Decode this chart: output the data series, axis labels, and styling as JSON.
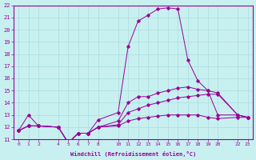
{
  "xlabel": "Windchill (Refroidissement éolien,°C)",
  "bg_color": "#c8f0f0",
  "line_color": "#990099",
  "grid_color": "#aadddd",
  "x_positions": [
    0,
    1,
    2,
    4,
    5,
    6,
    7,
    8,
    10,
    11,
    12,
    13,
    14,
    15,
    16,
    17,
    18,
    19,
    20,
    22,
    23
  ],
  "xtick_labels": [
    "0",
    "1",
    "2",
    "4",
    "5",
    "6",
    "7",
    "8",
    "10",
    "11",
    "12",
    "13",
    "14",
    "15",
    "16",
    "17",
    "18",
    "19",
    "20",
    "22",
    "23"
  ],
  "series1": [
    11.7,
    13.0,
    12.1,
    12.0,
    10.7,
    11.5,
    11.5,
    12.6,
    13.2,
    18.6,
    20.7,
    21.2,
    21.7,
    21.8,
    21.7,
    17.5,
    15.8,
    15.0,
    13.0,
    13.0,
    12.8
  ],
  "series2": [
    11.7,
    12.1,
    12.1,
    12.0,
    10.7,
    11.5,
    11.5,
    12.0,
    12.5,
    14.0,
    14.5,
    14.5,
    14.8,
    15.0,
    15.2,
    15.3,
    15.1,
    15.0,
    14.8,
    13.0,
    12.8
  ],
  "series3": [
    11.7,
    12.1,
    12.1,
    12.0,
    10.7,
    11.5,
    11.5,
    12.0,
    12.2,
    13.2,
    13.5,
    13.8,
    14.0,
    14.2,
    14.4,
    14.5,
    14.6,
    14.7,
    14.7,
    13.0,
    12.8
  ],
  "series4": [
    11.7,
    12.1,
    12.1,
    12.0,
    10.7,
    11.5,
    11.5,
    12.0,
    12.1,
    12.5,
    12.7,
    12.8,
    12.9,
    13.0,
    13.0,
    13.0,
    13.0,
    12.8,
    12.7,
    12.8,
    12.8
  ],
  "xlim": [
    -0.5,
    23.5
  ],
  "ylim": [
    11,
    22
  ],
  "ytick_vals": [
    11,
    12,
    13,
    14,
    15,
    16,
    17,
    18,
    19,
    20,
    21,
    22
  ]
}
